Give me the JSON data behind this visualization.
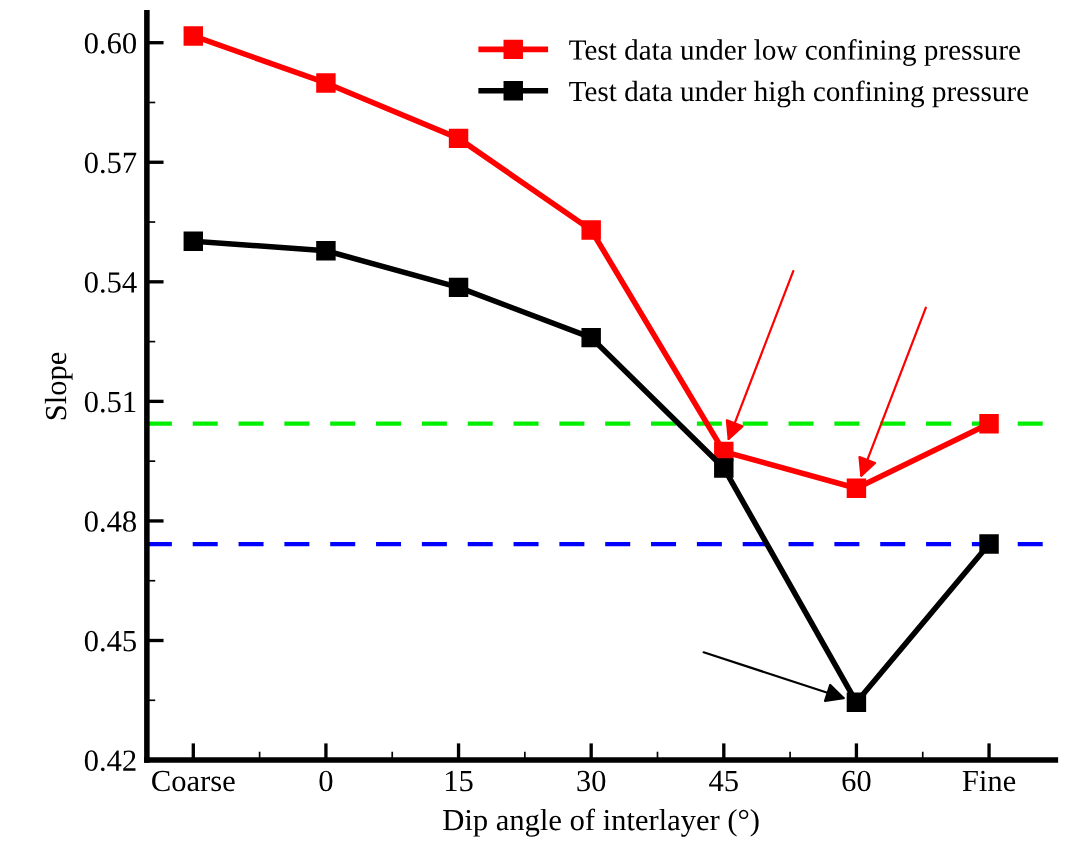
{
  "chart_data": {
    "type": "line",
    "xlabel": "Dip angle of interlayer (°)",
    "ylabel": "Slope",
    "categories": [
      "Coarse",
      "0",
      "15",
      "30",
      "45",
      "60",
      "Fine"
    ],
    "series": [
      {
        "name": "Test data under low confining pressure",
        "color": "#ff0000",
        "values": [
          0.6017,
          0.5899,
          0.576,
          0.553,
          0.4974,
          0.4882,
          0.5044
        ]
      },
      {
        "name": "Test data under high confining pressure",
        "color": "#000000",
        "values": [
          0.5502,
          0.5478,
          0.5386,
          0.526,
          0.4933,
          0.4345,
          0.4742
        ]
      }
    ],
    "ref_lines": [
      {
        "axis": "y",
        "value": 0.5044,
        "color": "#00ee00",
        "line_style": "dashed"
      },
      {
        "axis": "y",
        "value": 0.4742,
        "color": "#0000ff",
        "line_style": "dashed"
      }
    ],
    "ylim": [
      0.42,
      0.6075
    ],
    "yticks": [
      {
        "value": 0.42,
        "label": "0.42"
      },
      {
        "value": 0.45,
        "label": "0.45"
      },
      {
        "value": 0.48,
        "label": "0.48"
      },
      {
        "value": 0.51,
        "label": "0.51"
      },
      {
        "value": 0.54,
        "label": "0.54"
      },
      {
        "value": 0.57,
        "label": "0.57"
      },
      {
        "value": 0.6,
        "label": "0.60"
      }
    ],
    "marker": "square",
    "line_style": "solid",
    "grid": false,
    "legend": "top right"
  }
}
